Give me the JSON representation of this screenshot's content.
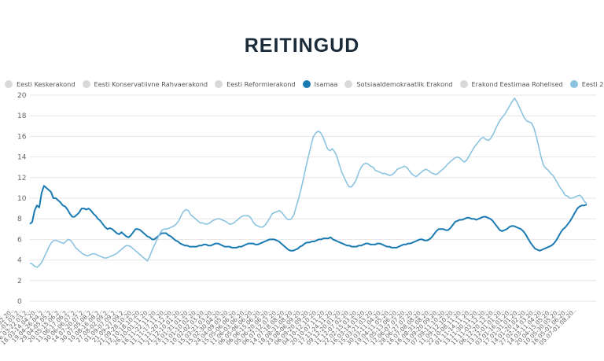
{
  "title": "REITINGUD",
  "legend": [
    {
      "label": "Eesti Keskerakond",
      "color": "#d9d9d9"
    },
    {
      "label": "Eesti Konservatiivne Rahvaerakond",
      "color": "#d9d9d9"
    },
    {
      "label": "Eesti Reformierakond",
      "color": "#d9d9d9"
    },
    {
      "label": "Isamaa",
      "color": "#1a7bb3"
    },
    {
      "label": "Sotsiaaldemokraatlik Erakond",
      "color": "#d9d9d9"
    },
    {
      "label": "Erakond Eestimaa Rohelised",
      "color": "#d9d9d9"
    },
    {
      "label": "Eesti 200",
      "color": "#8cc3e0"
    }
  ],
  "chart_data": {
    "type": "line",
    "ylim": [
      0,
      20
    ],
    "yticks": [
      0,
      2,
      4,
      6,
      8,
      10,
      12,
      14,
      16,
      18,
      20
    ],
    "grid": true,
    "legend_position": "top",
    "x_tick_labels": [
      "04.01-11.02.20..",
      "24.02-01.03.2..",
      "16.03-22.03.2..",
      "18.03-14.04.20..",
      "19.04-26.04.2..",
      "29.04-05.05.2..",
      "20.05-15.06.2..",
      "11.06-17.06.2..",
      "30.06-06.07.2..",
      "14.07-20.07.2..",
      "30.07-05.08.2..",
      "10.08-16.08.2..",
      "27.08-02.09.2..",
      "01.09-07.09.2..",
      "21.09-27.09.2..",
      "21.09-28.10.20..",
      "12.10-18.10.20..",
      "26.10-01.11.20..",
      "16.11-22.11.20..",
      "11.11-17.11.20..",
      "11.11-20.12.20..",
      "21.12-10.01.20..",
      "23.01-31.01.20..",
      "13.01-10.02.20..",
      "10.02-02.03.20..",
      "15.03-21.03.20..",
      "15.02-30.04.20..",
      "24.04-09.05.20..",
      "15.05-06.06.20..",
      "11.06-03.06.20..",
      "06.05-06.06.20..",
      "06.06-15.06.20..",
      "05.06-20.06.20..",
      "06.07-12.07.20..",
      "14.07-18.08.20..",
      "18.08-31.08.20..",
      "23.08-06.09.20..",
      "06.09-20.09.20..",
      "04.10-12.10.20..",
      "20.10-07.11.20..",
      "17.11-24.11.20..",
      "09.12-20.01.20..",
      "11.12-07.02.20..",
      "22.02-15.03.20..",
      "16.03-14.03.20..",
      "15.03-21.03.20..",
      "30.03-11.04.20..",
      "19.04-11.05.20..",
      "17.05-13.06.20..",
      "12.06-07.07.20..",
      "28.06-27.07.20..",
      "16.07-08.08.20..",
      "16.08-31.08.20..",
      "13.09-20.09.20..",
      "07.09-11.10.20..",
      "11.09-12.10.20..",
      "22.10-08.11.20..",
      "01.11-14.11.20..",
      "13.11-30.11.20..",
      "11.11-03.12.20..",
      "06.12-20.12.20..",
      "13.12-01.01.20..",
      "03.01-16.01.20..",
      "17.01-31.01.20..",
      "14.01-20.02.20..",
      "27.02-14.03.20..",
      "14.03-11.04.20..",
      "20.04-15.05.20..",
      "10.05-30.05.20..",
      "16.05-01.06.20..",
      "05.07-01.08.20.."
    ],
    "series": [
      {
        "name": "Isamaa",
        "color": "#1a7bb3",
        "values": [
          7.5,
          7.7,
          8.8,
          9.3,
          9.1,
          10.5,
          11.2,
          11.0,
          10.8,
          10.6,
          10.0,
          10.0,
          9.8,
          9.6,
          9.3,
          9.2,
          8.9,
          8.5,
          8.2,
          8.2,
          8.4,
          8.6,
          9.0,
          9.0,
          8.9,
          9.0,
          8.8,
          8.5,
          8.3,
          8.0,
          7.8,
          7.5,
          7.2,
          7.0,
          7.1,
          7.0,
          6.8,
          6.6,
          6.5,
          6.7,
          6.5,
          6.3,
          6.2,
          6.4,
          6.7,
          7.0,
          7.0,
          6.9,
          6.7,
          6.5,
          6.3,
          6.2,
          6.0,
          6.0,
          6.2,
          6.4,
          6.6,
          6.6,
          6.6,
          6.4,
          6.3,
          6.1,
          5.9,
          5.8,
          5.6,
          5.5,
          5.4,
          5.4,
          5.3,
          5.3,
          5.3,
          5.3,
          5.4,
          5.4,
          5.5,
          5.5,
          5.4,
          5.4,
          5.5,
          5.6,
          5.6,
          5.5,
          5.4,
          5.3,
          5.3,
          5.3,
          5.2,
          5.2,
          5.2,
          5.3,
          5.3,
          5.4,
          5.5,
          5.6,
          5.6,
          5.6,
          5.5,
          5.5,
          5.6,
          5.7,
          5.8,
          5.9,
          6.0,
          6.0,
          6.0,
          5.9,
          5.8,
          5.6,
          5.4,
          5.2,
          5.0,
          4.9,
          4.9,
          5.0,
          5.1,
          5.3,
          5.4,
          5.6,
          5.7,
          5.7,
          5.8,
          5.8,
          5.9,
          6.0,
          6.0,
          6.1,
          6.1,
          6.1,
          6.2,
          6.0,
          5.9,
          5.8,
          5.7,
          5.6,
          5.5,
          5.4,
          5.4,
          5.3,
          5.3,
          5.3,
          5.4,
          5.4,
          5.5,
          5.6,
          5.6,
          5.5,
          5.5,
          5.5,
          5.6,
          5.6,
          5.5,
          5.4,
          5.3,
          5.3,
          5.2,
          5.2,
          5.2,
          5.3,
          5.4,
          5.5,
          5.5,
          5.6,
          5.6,
          5.7,
          5.8,
          5.9,
          6.0,
          6.0,
          5.9,
          5.9,
          6.0,
          6.2,
          6.5,
          6.8,
          7.0,
          7.0,
          7.0,
          6.9,
          6.9,
          7.1,
          7.4,
          7.7,
          7.8,
          7.9,
          7.9,
          8.0,
          8.1,
          8.1,
          8.0,
          8.0,
          7.9,
          8.0,
          8.1,
          8.2,
          8.2,
          8.1,
          8.0,
          7.8,
          7.5,
          7.2,
          6.9,
          6.8,
          6.9,
          7.0,
          7.2,
          7.3,
          7.3,
          7.2,
          7.1,
          7.0,
          6.8,
          6.5,
          6.1,
          5.7,
          5.4,
          5.1,
          5.0,
          4.9,
          5.0,
          5.1,
          5.2,
          5.3,
          5.4,
          5.6,
          5.9,
          6.3,
          6.7,
          7.0,
          7.2,
          7.5,
          7.8,
          8.2,
          8.6,
          9.0,
          9.2,
          9.3,
          9.3,
          9.4
        ]
      },
      {
        "name": "Eesti 200",
        "color": "#8cc3e0",
        "values": [
          3.7,
          3.6,
          3.4,
          3.3,
          3.5,
          3.8,
          4.3,
          4.8,
          5.3,
          5.7,
          5.9,
          5.9,
          5.8,
          5.7,
          5.6,
          5.8,
          6.0,
          5.9,
          5.6,
          5.2,
          5.0,
          4.8,
          4.6,
          4.5,
          4.4,
          4.5,
          4.6,
          4.6,
          4.5,
          4.4,
          4.3,
          4.2,
          4.2,
          4.3,
          4.4,
          4.5,
          4.6,
          4.8,
          5.0,
          5.2,
          5.4,
          5.4,
          5.3,
          5.1,
          4.9,
          4.7,
          4.5,
          4.3,
          4.1,
          3.9,
          4.4,
          5.0,
          5.5,
          6.0,
          6.5,
          6.9,
          7.0,
          7.0,
          7.1,
          7.2,
          7.3,
          7.5,
          7.8,
          8.3,
          8.7,
          8.9,
          8.8,
          8.4,
          8.2,
          8.0,
          7.8,
          7.6,
          7.6,
          7.5,
          7.5,
          7.6,
          7.8,
          7.9,
          8.0,
          8.0,
          7.9,
          7.8,
          7.7,
          7.5,
          7.5,
          7.6,
          7.8,
          8.0,
          8.2,
          8.3,
          8.3,
          8.3,
          8.1,
          7.7,
          7.4,
          7.3,
          7.2,
          7.2,
          7.4,
          7.7,
          8.1,
          8.5,
          8.6,
          8.7,
          8.8,
          8.6,
          8.3,
          8.0,
          7.9,
          8.0,
          8.4,
          9.2,
          10.0,
          10.9,
          11.9,
          13.0,
          14.0,
          15.0,
          15.9,
          16.3,
          16.5,
          16.4,
          16.0,
          15.4,
          14.8,
          14.6,
          14.8,
          14.5,
          14.0,
          13.2,
          12.5,
          12.0,
          11.5,
          11.1,
          11.1,
          11.4,
          11.8,
          12.5,
          13.0,
          13.3,
          13.4,
          13.3,
          13.1,
          13.0,
          12.7,
          12.6,
          12.5,
          12.4,
          12.4,
          12.3,
          12.2,
          12.3,
          12.5,
          12.8,
          12.9,
          13.0,
          13.1,
          13.0,
          12.7,
          12.4,
          12.2,
          12.1,
          12.3,
          12.5,
          12.7,
          12.8,
          12.7,
          12.5,
          12.4,
          12.3,
          12.4,
          12.6,
          12.8,
          13.0,
          13.3,
          13.5,
          13.7,
          13.9,
          14.0,
          13.9,
          13.7,
          13.5,
          13.7,
          14.1,
          14.5,
          14.9,
          15.2,
          15.5,
          15.8,
          15.9,
          15.7,
          15.6,
          15.8,
          16.2,
          16.7,
          17.2,
          17.6,
          17.9,
          18.2,
          18.6,
          19.0,
          19.4,
          19.7,
          19.3,
          18.8,
          18.3,
          17.8,
          17.5,
          17.4,
          17.3,
          16.8,
          16.0,
          15.0,
          14.0,
          13.2,
          12.9,
          12.7,
          12.4,
          12.2,
          11.8,
          11.4,
          11.0,
          10.7,
          10.3,
          10.2,
          10.0,
          10.0,
          10.1,
          10.2,
          10.3,
          10.1,
          9.7,
          9.5
        ]
      }
    ]
  }
}
